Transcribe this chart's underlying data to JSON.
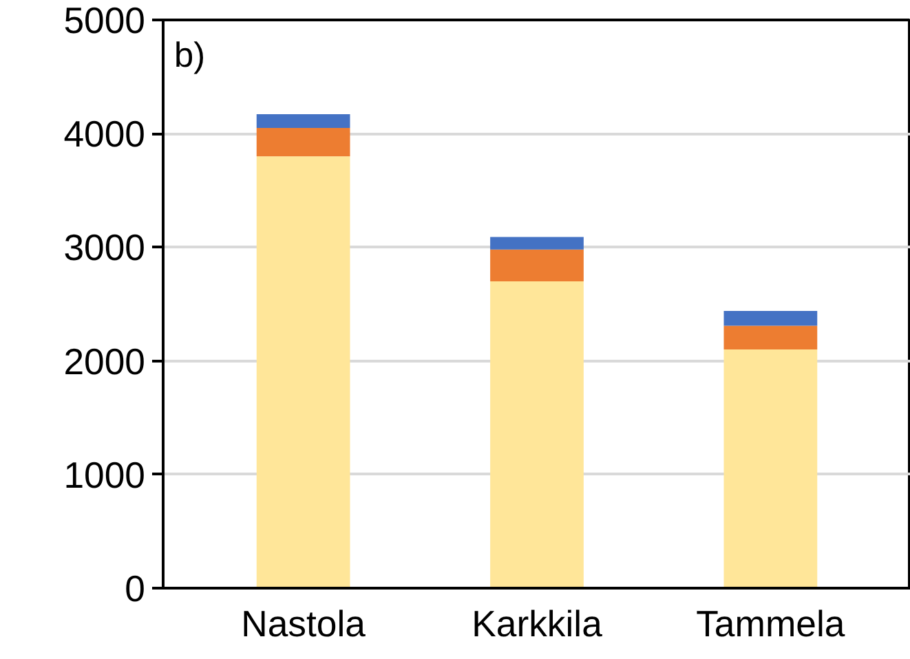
{
  "chart_data": {
    "type": "bar",
    "stacked": true,
    "categories": [
      "Nastola",
      "Karkkila",
      "Tammela"
    ],
    "series": [
      {
        "color": "#ffe699",
        "values": [
          3800,
          2700,
          2100
        ]
      },
      {
        "color": "#ed7d31",
        "values": [
          250,
          280,
          210
        ]
      },
      {
        "color": "#4472c4",
        "values": [
          120,
          110,
          130
        ]
      }
    ],
    "ylim": [
      0,
      5000
    ],
    "yticks": [
      0,
      1000,
      2000,
      3000,
      4000,
      5000
    ],
    "grid": "y",
    "annotations": [
      "b)"
    ]
  }
}
